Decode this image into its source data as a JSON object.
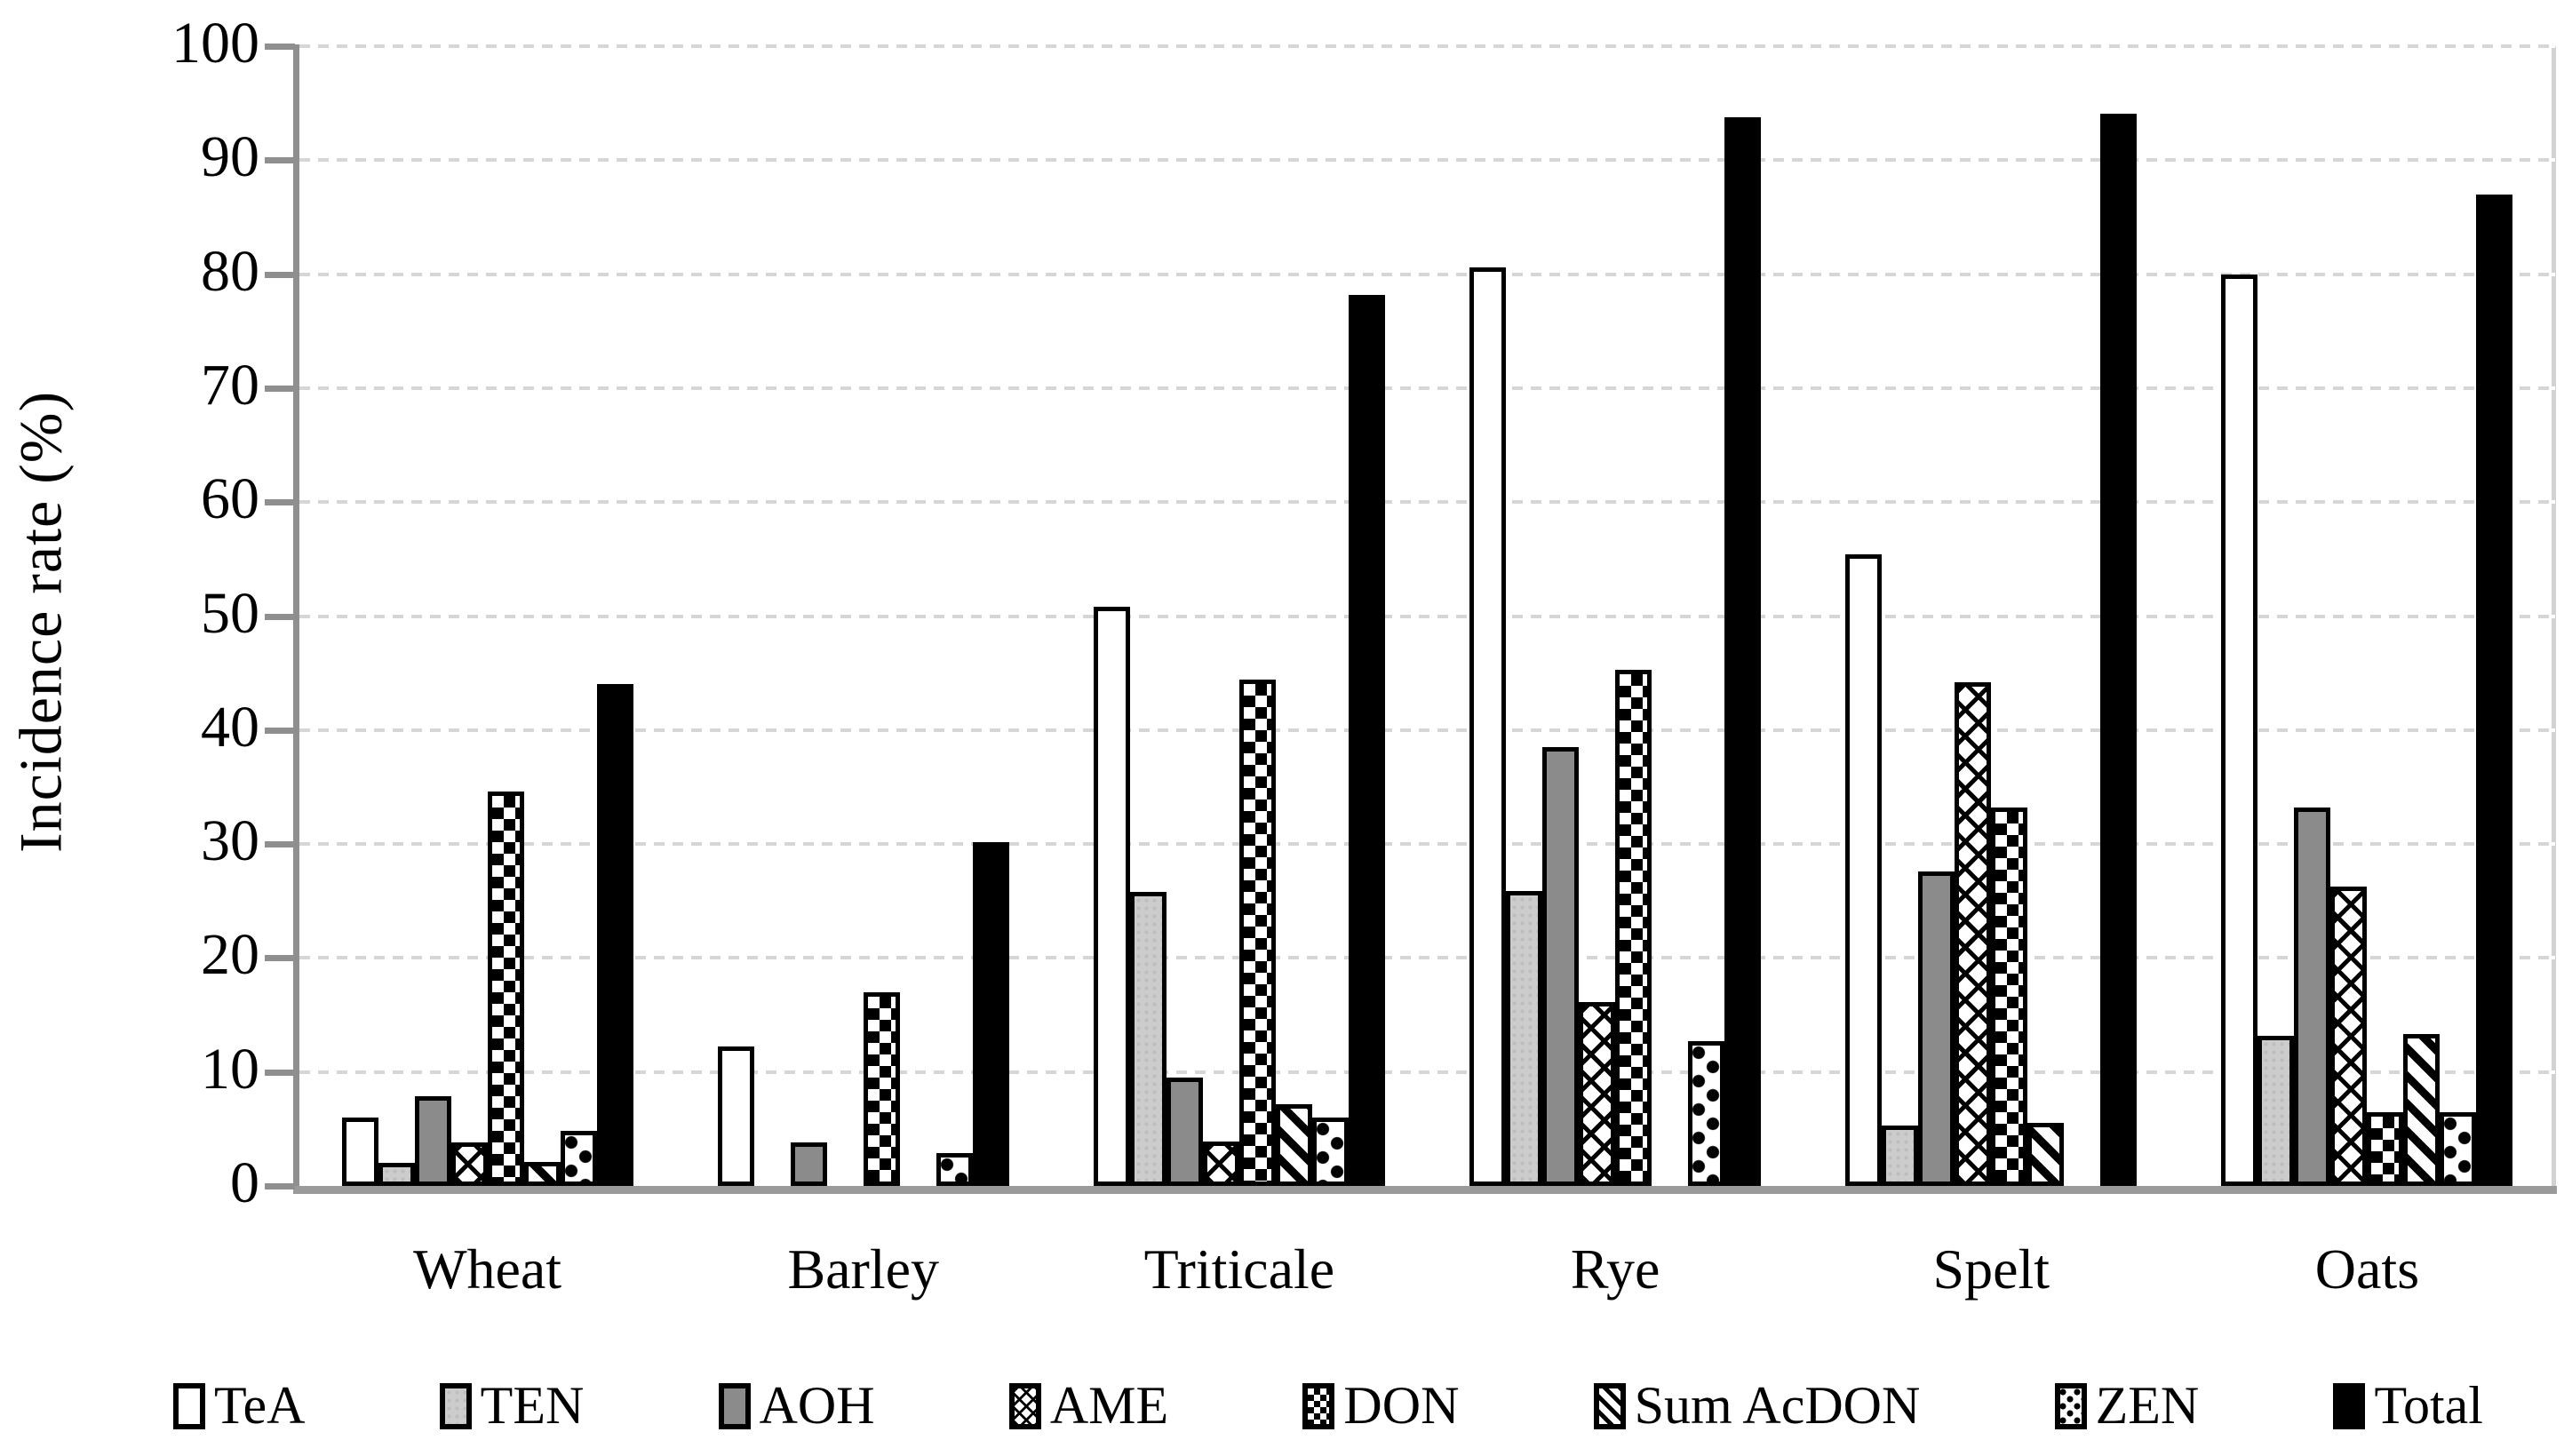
{
  "chart_data": {
    "type": "bar",
    "title": "",
    "xlabel": "",
    "ylabel": "Incidence rate (%)",
    "ylim": [
      0,
      100
    ],
    "ytick_step": 10,
    "ytick_labels": [
      "0",
      "10",
      "20",
      "30",
      "40",
      "50",
      "60",
      "70",
      "80",
      "90",
      "100"
    ],
    "grid": "horizontal-dotted-light-gray",
    "legend_position": "bottom",
    "categories": [
      "Wheat",
      "Barley",
      "Triticale",
      "Rye",
      "Spelt",
      "Oats"
    ],
    "series": [
      {
        "name": "TeA",
        "pattern": "white",
        "values": [
          6.0,
          12.2,
          50.8,
          80.6,
          55.4,
          80.0
        ]
      },
      {
        "name": "TEN",
        "pattern": "light-gray-speckle",
        "values": [
          2.0,
          0,
          25.8,
          25.9,
          5.3,
          13.2
        ]
      },
      {
        "name": "AOH",
        "pattern": "dark-gray",
        "values": [
          7.9,
          3.8,
          9.5,
          38.5,
          27.6,
          33.2
        ]
      },
      {
        "name": "AME",
        "pattern": "diamond-crosshatch",
        "values": [
          3.8,
          0,
          3.9,
          16.1,
          44.2,
          26.3
        ]
      },
      {
        "name": "DON",
        "pattern": "checkerboard",
        "values": [
          34.6,
          17.0,
          44.4,
          45.3,
          33.2,
          6.5
        ]
      },
      {
        "name": "Sum AcDON",
        "pattern": "diagonal-stripes",
        "values": [
          2.1,
          0,
          7.2,
          0,
          5.5,
          13.3
        ]
      },
      {
        "name": "ZEN",
        "pattern": "dots",
        "values": [
          4.8,
          2.9,
          6.0,
          12.7,
          0,
          6.5
        ]
      },
      {
        "name": "Total",
        "pattern": "solid-black",
        "values": [
          44.0,
          30.2,
          78.2,
          93.8,
          94.1,
          87.0
        ]
      }
    ]
  }
}
